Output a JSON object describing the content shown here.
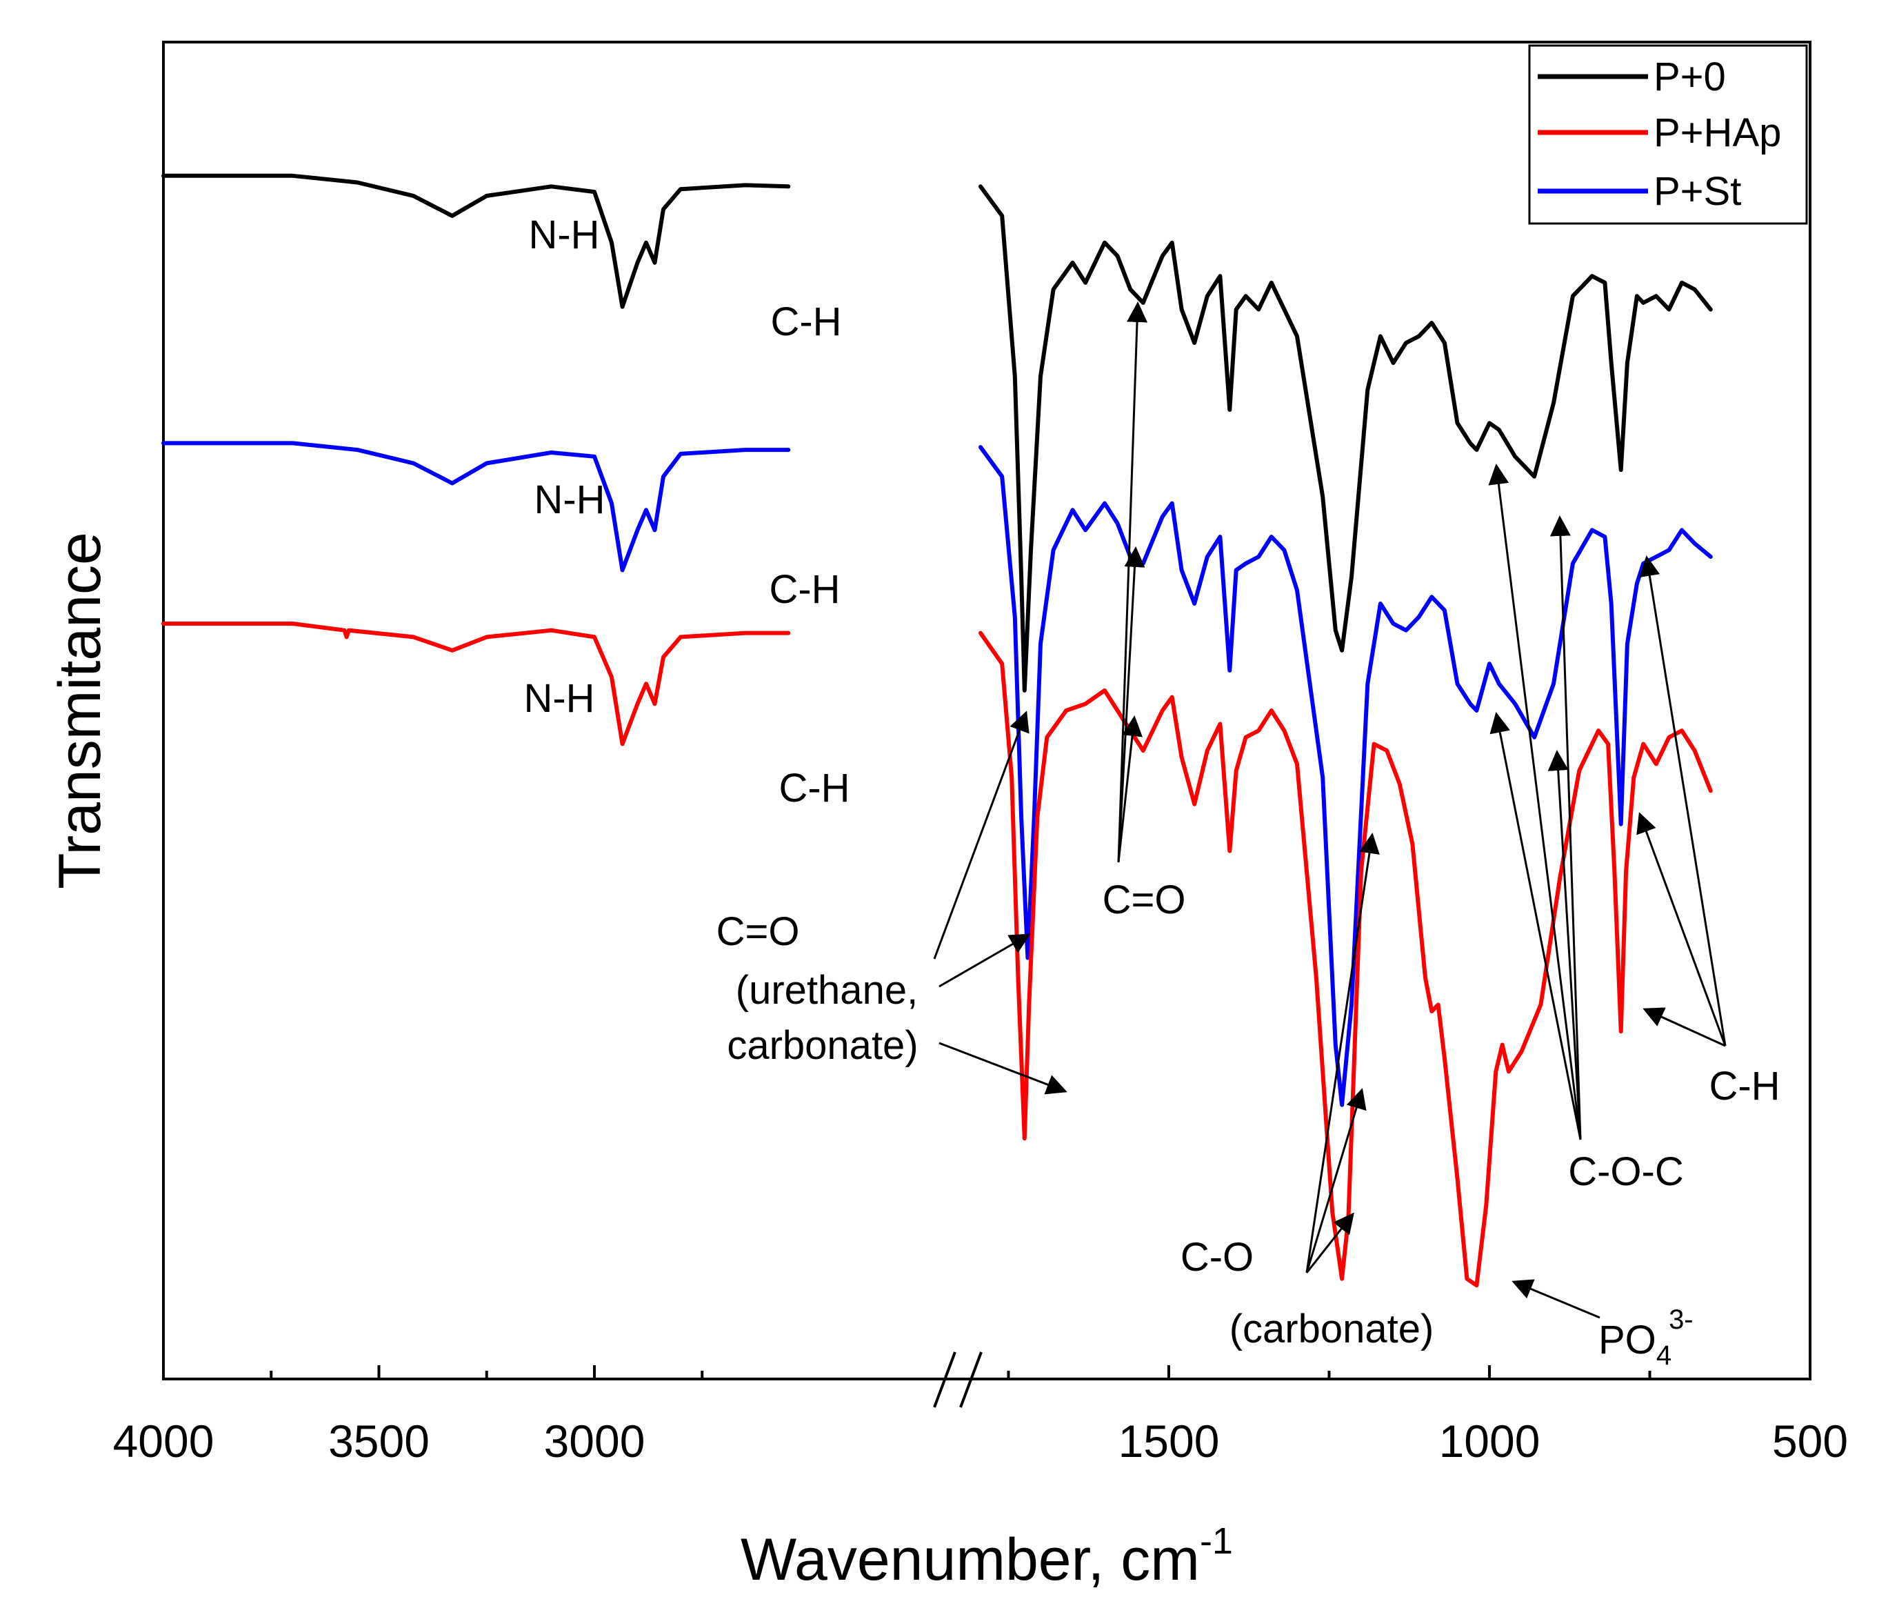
{
  "chart_data": {
    "type": "line",
    "title": "",
    "xlabel": "Wavenumber, cm",
    "xlabel_superscript": "-1",
    "ylabel": "Transmitance",
    "x_reversed": true,
    "x_axis_break": [
      2200,
      1800
    ],
    "xlim": [
      4000,
      500
    ],
    "xticks": [
      4000,
      3500,
      3000,
      1500,
      1000,
      500
    ],
    "xtick_labels": [
      "4000",
      "3500",
      "3000",
      "1500",
      "1000",
      "500"
    ],
    "ylim": [
      0,
      100
    ],
    "grid": false,
    "legend": "top-right",
    "series": [
      {
        "name": "P+0",
        "color": "#000000",
        "points": [
          [
            4000,
            90.0
          ],
          [
            3700,
            90.0
          ],
          [
            3550,
            89.5
          ],
          [
            3420,
            88.5
          ],
          [
            3330,
            87.0
          ],
          [
            3250,
            88.5
          ],
          [
            3100,
            89.2
          ],
          [
            3000,
            88.8
          ],
          [
            2960,
            85.0
          ],
          [
            2935,
            80.2
          ],
          [
            2900,
            83.5
          ],
          [
            2880,
            85.0
          ],
          [
            2860,
            83.5
          ],
          [
            2840,
            87.5
          ],
          [
            2800,
            89.0
          ],
          [
            2650,
            89.3
          ],
          [
            2550,
            89.2
          ],
          [
            1800,
            89.2
          ],
          [
            1760,
            87.0
          ],
          [
            1740,
            75.0
          ],
          [
            1730,
            60.0
          ],
          [
            1725,
            51.5
          ],
          [
            1715,
            62.0
          ],
          [
            1700,
            75.0
          ],
          [
            1680,
            81.5
          ],
          [
            1650,
            83.5
          ],
          [
            1630,
            82.0
          ],
          [
            1600,
            85.0
          ],
          [
            1580,
            84.0
          ],
          [
            1560,
            81.5
          ],
          [
            1540,
            80.5
          ],
          [
            1510,
            84.0
          ],
          [
            1495,
            85.0
          ],
          [
            1480,
            80.0
          ],
          [
            1460,
            77.5
          ],
          [
            1440,
            81.0
          ],
          [
            1420,
            82.5
          ],
          [
            1405,
            72.5
          ],
          [
            1395,
            80.0
          ],
          [
            1380,
            81.0
          ],
          [
            1360,
            80.0
          ],
          [
            1340,
            82.0
          ],
          [
            1320,
            80.0
          ],
          [
            1300,
            78.0
          ],
          [
            1260,
            66.0
          ],
          [
            1240,
            56.0
          ],
          [
            1230,
            54.5
          ],
          [
            1215,
            60.0
          ],
          [
            1190,
            74.0
          ],
          [
            1170,
            78.0
          ],
          [
            1150,
            76.0
          ],
          [
            1130,
            77.5
          ],
          [
            1110,
            78.0
          ],
          [
            1090,
            79.0
          ],
          [
            1070,
            77.5
          ],
          [
            1050,
            71.5
          ],
          [
            1030,
            70.0
          ],
          [
            1020,
            69.5
          ],
          [
            1000,
            71.5
          ],
          [
            985,
            71.0
          ],
          [
            960,
            69.0
          ],
          [
            930,
            67.5
          ],
          [
            900,
            73.0
          ],
          [
            870,
            81.0
          ],
          [
            840,
            82.5
          ],
          [
            820,
            82.0
          ],
          [
            810,
            76.0
          ],
          [
            795,
            68.0
          ],
          [
            785,
            76.0
          ],
          [
            770,
            81.0
          ],
          [
            760,
            80.5
          ],
          [
            740,
            81.0
          ],
          [
            720,
            80.0
          ],
          [
            700,
            82.0
          ],
          [
            680,
            81.5
          ],
          [
            655,
            80.0
          ]
        ]
      },
      {
        "name": "P+St",
        "color": "#0000ff",
        "points": [
          [
            4000,
            70.0
          ],
          [
            3700,
            70.0
          ],
          [
            3550,
            69.5
          ],
          [
            3420,
            68.5
          ],
          [
            3330,
            67.0
          ],
          [
            3250,
            68.5
          ],
          [
            3100,
            69.3
          ],
          [
            3000,
            69.0
          ],
          [
            2960,
            65.5
          ],
          [
            2935,
            60.5
          ],
          [
            2900,
            63.5
          ],
          [
            2880,
            65.0
          ],
          [
            2860,
            63.5
          ],
          [
            2840,
            67.5
          ],
          [
            2800,
            69.2
          ],
          [
            2650,
            69.5
          ],
          [
            2550,
            69.5
          ],
          [
            1800,
            69.7
          ],
          [
            1760,
            67.5
          ],
          [
            1740,
            57.0
          ],
          [
            1730,
            42.0
          ],
          [
            1720,
            31.5
          ],
          [
            1710,
            42.0
          ],
          [
            1700,
            55.0
          ],
          [
            1680,
            62.0
          ],
          [
            1650,
            65.0
          ],
          [
            1630,
            63.5
          ],
          [
            1600,
            65.5
          ],
          [
            1580,
            64.0
          ],
          [
            1560,
            61.5
          ],
          [
            1540,
            61.0
          ],
          [
            1510,
            64.5
          ],
          [
            1495,
            65.5
          ],
          [
            1480,
            60.5
          ],
          [
            1460,
            58.0
          ],
          [
            1440,
            61.5
          ],
          [
            1420,
            63.0
          ],
          [
            1405,
            53.0
          ],
          [
            1395,
            60.5
          ],
          [
            1380,
            61.0
          ],
          [
            1360,
            61.5
          ],
          [
            1340,
            63.0
          ],
          [
            1320,
            62.0
          ],
          [
            1300,
            59.0
          ],
          [
            1260,
            45.0
          ],
          [
            1240,
            25.0
          ],
          [
            1230,
            20.5
          ],
          [
            1215,
            28.0
          ],
          [
            1190,
            52.0
          ],
          [
            1170,
            58.0
          ],
          [
            1150,
            56.5
          ],
          [
            1130,
            56.0
          ],
          [
            1110,
            57.0
          ],
          [
            1090,
            58.5
          ],
          [
            1070,
            57.5
          ],
          [
            1050,
            52.0
          ],
          [
            1030,
            50.5
          ],
          [
            1020,
            50.0
          ],
          [
            1000,
            53.5
          ],
          [
            985,
            52.0
          ],
          [
            960,
            50.5
          ],
          [
            930,
            48.0
          ],
          [
            900,
            52.0
          ],
          [
            870,
            61.0
          ],
          [
            840,
            63.5
          ],
          [
            820,
            63.0
          ],
          [
            810,
            58.0
          ],
          [
            795,
            41.5
          ],
          [
            785,
            55.0
          ],
          [
            770,
            59.5
          ],
          [
            760,
            61.0
          ],
          [
            740,
            61.5
          ],
          [
            720,
            62.0
          ],
          [
            700,
            63.5
          ],
          [
            680,
            62.5
          ],
          [
            655,
            61.5
          ]
        ]
      },
      {
        "name": "P+HAp",
        "color": "#ff0000",
        "points": [
          [
            4000,
            56.5
          ],
          [
            3700,
            56.5
          ],
          [
            3580,
            56.0
          ],
          [
            3575,
            55.5
          ],
          [
            3570,
            56.0
          ],
          [
            3420,
            55.5
          ],
          [
            3330,
            54.5
          ],
          [
            3250,
            55.5
          ],
          [
            3100,
            56.0
          ],
          [
            3000,
            55.5
          ],
          [
            2960,
            52.5
          ],
          [
            2935,
            47.5
          ],
          [
            2900,
            50.5
          ],
          [
            2880,
            52.0
          ],
          [
            2860,
            50.5
          ],
          [
            2840,
            54.0
          ],
          [
            2800,
            55.5
          ],
          [
            2650,
            55.8
          ],
          [
            2550,
            55.8
          ],
          [
            1800,
            55.8
          ],
          [
            1760,
            53.5
          ],
          [
            1745,
            45.0
          ],
          [
            1735,
            30.0
          ],
          [
            1725,
            18.0
          ],
          [
            1718,
            28.0
          ],
          [
            1705,
            42.0
          ],
          [
            1690,
            48.0
          ],
          [
            1660,
            50.0
          ],
          [
            1630,
            50.5
          ],
          [
            1600,
            51.5
          ],
          [
            1580,
            50.0
          ],
          [
            1560,
            48.5
          ],
          [
            1540,
            47.0
          ],
          [
            1510,
            50.0
          ],
          [
            1495,
            51.0
          ],
          [
            1480,
            46.5
          ],
          [
            1460,
            43.0
          ],
          [
            1440,
            47.0
          ],
          [
            1420,
            49.0
          ],
          [
            1405,
            39.5
          ],
          [
            1395,
            45.5
          ],
          [
            1380,
            48.0
          ],
          [
            1360,
            48.5
          ],
          [
            1340,
            50.0
          ],
          [
            1320,
            48.5
          ],
          [
            1300,
            46.0
          ],
          [
            1270,
            30.0
          ],
          [
            1245,
            12.5
          ],
          [
            1230,
            7.5
          ],
          [
            1220,
            12.0
          ],
          [
            1200,
            38.0
          ],
          [
            1180,
            47.5
          ],
          [
            1160,
            47.0
          ],
          [
            1140,
            44.5
          ],
          [
            1120,
            40.0
          ],
          [
            1100,
            30.0
          ],
          [
            1090,
            27.5
          ],
          [
            1080,
            28.0
          ],
          [
            1070,
            24.0
          ],
          [
            1050,
            15.0
          ],
          [
            1035,
            7.5
          ],
          [
            1020,
            7.0
          ],
          [
            1005,
            13.0
          ],
          [
            990,
            23.0
          ],
          [
            980,
            25.0
          ],
          [
            970,
            23.0
          ],
          [
            950,
            24.5
          ],
          [
            920,
            28.0
          ],
          [
            890,
            37.5
          ],
          [
            860,
            45.5
          ],
          [
            830,
            48.5
          ],
          [
            815,
            47.5
          ],
          [
            805,
            38.0
          ],
          [
            795,
            26.0
          ],
          [
            787,
            38.0
          ],
          [
            775,
            45.0
          ],
          [
            760,
            47.5
          ],
          [
            740,
            46.0
          ],
          [
            720,
            48.0
          ],
          [
            700,
            48.5
          ],
          [
            680,
            47.0
          ],
          [
            655,
            44.0
          ]
        ]
      }
    ],
    "annotations": [
      {
        "text": "N-H",
        "series": "P+0"
      },
      {
        "text": "C-H",
        "series": "P+0"
      },
      {
        "text": "N-H",
        "series": "P+St"
      },
      {
        "text": "C-H",
        "series": "P+St"
      },
      {
        "text": "N-H",
        "series": "P+HAp"
      },
      {
        "text": "C-H",
        "series": "P+HAp"
      },
      {
        "text": "C=O",
        "target": [
          1630,
          83.5
        ]
      },
      {
        "text": "C=O",
        "text2": "(urethane,",
        "text3": "carbonate)",
        "target": [
          1725,
          50.0
        ]
      },
      {
        "text": "C-O",
        "text2": "(carbonate)",
        "target": [
          1230,
          20.5
        ]
      },
      {
        "text": "PO",
        "subscript": "4",
        "superscript": "3-",
        "target": [
          1020,
          7.0
        ]
      },
      {
        "text": "C-O-C",
        "target": [
          930,
          67.5
        ]
      },
      {
        "text": "C-H",
        "target": [
          795,
          68.0
        ]
      }
    ]
  }
}
